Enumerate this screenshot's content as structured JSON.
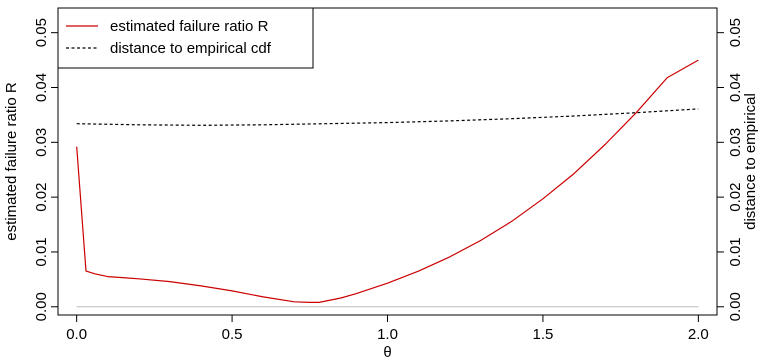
{
  "chart_data": {
    "type": "line",
    "xlabel": "θ",
    "ylabel_left": "estimated failure ratio R",
    "ylabel_right": "distance to empirical",
    "x_ticks": [
      0.0,
      0.5,
      1.0,
      1.5,
      2.0
    ],
    "x_tick_labels": [
      "0.0",
      "0.5",
      "1.0",
      "1.5",
      "2.0"
    ],
    "y_ticks": [
      0.0,
      0.01,
      0.02,
      0.03,
      0.04,
      0.05
    ],
    "y_tick_labels": [
      "0.00",
      "0.01",
      "0.02",
      "0.03",
      "0.04",
      "0.05"
    ],
    "y2_ticks": [
      0.0,
      0.01,
      0.02,
      0.03,
      0.04,
      0.05
    ],
    "y2_tick_labels": [
      "0.00",
      "0.01",
      "0.02",
      "0.03",
      "0.04",
      "0.05"
    ],
    "xlim": [
      -0.06,
      2.06
    ],
    "ylim": [
      -0.0015,
      0.0545
    ],
    "grid": false,
    "legend_position": "top-left",
    "reference_line": {
      "y": 0.0,
      "color": "#bbbbbb"
    },
    "series": [
      {
        "name": "estimated failure ratio R",
        "axis": "left",
        "color": "#cc0000",
        "style": "solid",
        "x": [
          0.0,
          0.03,
          0.06,
          0.1,
          0.2,
          0.3,
          0.4,
          0.5,
          0.6,
          0.7,
          0.75,
          0.78,
          0.85,
          0.9,
          1.0,
          1.1,
          1.2,
          1.3,
          1.4,
          1.5,
          1.6,
          1.7,
          1.8,
          1.9,
          2.0
        ],
        "y": [
          0.0292,
          0.0065,
          0.006,
          0.0055,
          0.0051,
          0.0046,
          0.0038,
          0.0029,
          0.0018,
          0.0009,
          0.0008,
          0.0008,
          0.0016,
          0.0024,
          0.0043,
          0.0065,
          0.0091,
          0.0121,
          0.0156,
          0.0197,
          0.0243,
          0.0296,
          0.0354,
          0.0418,
          0.045
        ]
      },
      {
        "name": "distance to empirical cdf",
        "axis": "right",
        "color": "#000000",
        "style": "dashed",
        "x": [
          0.0,
          0.2,
          0.4,
          0.6,
          0.8,
          1.0,
          1.2,
          1.4,
          1.6,
          1.8,
          2.0
        ],
        "y": [
          0.0334,
          0.0332,
          0.0331,
          0.0332,
          0.0334,
          0.0336,
          0.0339,
          0.0343,
          0.0348,
          0.0354,
          0.0361
        ]
      }
    ]
  }
}
